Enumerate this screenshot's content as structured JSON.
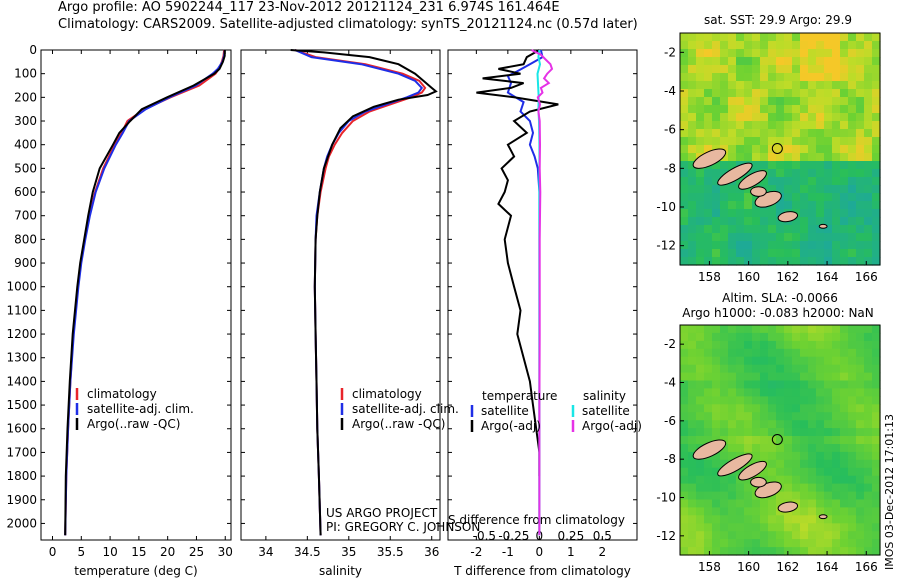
{
  "header": {
    "line1": "Argo profile: AO 5902244_117 23-Nov-2012 20121124_231 6.974S 161.464E",
    "line2": "Climatology: CARS2009. Satellite-adjusted climatology: synTS_20121124.nc (0.57d later)"
  },
  "stamp": "IMOS 03-Dec-2012 17:01:13",
  "colors": {
    "red": "#e8242a",
    "blue": "#1f2ee6",
    "black": "#000000",
    "cyan": "#19e6e6",
    "magenta": "#e632e6"
  },
  "depth_axis": {
    "ticks": [
      0,
      100,
      200,
      300,
      400,
      500,
      600,
      700,
      800,
      900,
      1000,
      1100,
      1200,
      1300,
      1400,
      1500,
      1600,
      1700,
      1800,
      1900,
      2000
    ],
    "range": [
      0,
      2070
    ]
  },
  "chart_data": [
    {
      "type": "line",
      "xlabel": "temperature (deg C)",
      "xticks": [
        0,
        5,
        10,
        15,
        20,
        25,
        30
      ],
      "xlim": [
        -2,
        31
      ],
      "legend": {
        "entries": [
          "climatology",
          "satellite-adj. clim.",
          "Argo(..raw -QC)"
        ]
      },
      "series": [
        {
          "name": "climatology",
          "color": "red",
          "depth": [
            0,
            25,
            50,
            80,
            100,
            150,
            200,
            250,
            300,
            350,
            400,
            500,
            600,
            700,
            800,
            900,
            1000,
            1200,
            1400,
            1600,
            1800,
            2050
          ],
          "values": [
            29.8,
            29.7,
            29.4,
            28.9,
            28.3,
            25.5,
            20.5,
            16.0,
            13.0,
            12.0,
            10.8,
            8.8,
            7.4,
            6.4,
            5.6,
            4.9,
            4.4,
            3.6,
            3.1,
            2.7,
            2.4,
            2.2
          ]
        },
        {
          "name": "satellite-adj. clim.",
          "color": "blue",
          "depth": [
            0,
            25,
            50,
            80,
            100,
            150,
            200,
            250,
            300,
            350,
            400,
            500,
            600,
            700,
            800,
            900,
            1000,
            1200,
            1400,
            1600,
            1800,
            2050
          ],
          "values": [
            29.9,
            29.8,
            29.5,
            28.7,
            27.8,
            24.9,
            20.3,
            16.2,
            13.3,
            12.2,
            11.0,
            9.0,
            7.5,
            6.5,
            5.7,
            5.0,
            4.5,
            3.7,
            3.1,
            2.7,
            2.4,
            2.2
          ]
        },
        {
          "name": "Argo(..raw -QC)",
          "color": "black",
          "depth": [
            0,
            25,
            50,
            80,
            100,
            150,
            200,
            250,
            300,
            350,
            400,
            500,
            600,
            700,
            800,
            900,
            1000,
            1200,
            1400,
            1600,
            1800,
            2050
          ],
          "values": [
            29.9,
            29.9,
            29.6,
            29.0,
            28.1,
            24.5,
            19.9,
            15.5,
            13.5,
            11.6,
            10.5,
            8.2,
            7.0,
            6.2,
            5.5,
            4.8,
            4.3,
            3.5,
            3.0,
            2.6,
            2.3,
            2.2
          ]
        }
      ]
    },
    {
      "type": "line",
      "xlabel": "salinity",
      "xticks": [
        34,
        34.5,
        35,
        35.5,
        36
      ],
      "xlim": [
        33.7,
        36.1
      ],
      "legend": {
        "entries": [
          "climatology",
          "satellite-adj. clim.",
          "Argo(..raw -QC)"
        ]
      },
      "annotation": [
        "US ARGO PROJECT",
        "PI: GREGORY C. JOHNSON"
      ],
      "series": [
        {
          "name": "climatology",
          "color": "red",
          "depth": [
            0,
            30,
            60,
            100,
            130,
            160,
            180,
            200,
            230,
            260,
            300,
            350,
            400,
            450,
            500,
            600,
            700,
            800,
            1000,
            1200,
            1400,
            1600,
            1800,
            2050
          ],
          "values": [
            34.35,
            34.6,
            35.2,
            35.65,
            35.85,
            35.92,
            35.88,
            35.75,
            35.5,
            35.25,
            35.05,
            34.92,
            34.83,
            34.76,
            34.72,
            34.66,
            34.62,
            34.6,
            34.59,
            34.6,
            34.61,
            34.62,
            34.64,
            34.66
          ]
        },
        {
          "name": "satellite-adj. clim.",
          "color": "blue",
          "depth": [
            0,
            30,
            60,
            100,
            130,
            160,
            180,
            200,
            230,
            260,
            300,
            350,
            400,
            450,
            500,
            600,
            700,
            800,
            1000,
            1200,
            1400,
            1600,
            1800,
            2050
          ],
          "values": [
            34.35,
            34.55,
            35.15,
            35.6,
            35.8,
            35.88,
            35.84,
            35.7,
            35.45,
            35.2,
            35.0,
            34.88,
            34.8,
            34.74,
            34.7,
            34.65,
            34.61,
            34.6,
            34.59,
            34.6,
            34.61,
            34.62,
            34.64,
            34.66
          ]
        },
        {
          "name": "Argo(..raw -QC)",
          "color": "black",
          "depth": [
            0,
            10,
            30,
            60,
            100,
            130,
            160,
            175,
            190,
            210,
            240,
            280,
            330,
            400,
            500,
            600,
            700,
            800,
            1000,
            1200,
            1400,
            1600,
            1800,
            2050
          ],
          "values": [
            34.3,
            34.7,
            35.25,
            35.6,
            35.8,
            35.9,
            36.0,
            36.05,
            35.95,
            35.6,
            35.3,
            35.05,
            34.9,
            34.8,
            34.7,
            34.65,
            34.62,
            34.6,
            34.59,
            34.6,
            34.61,
            34.62,
            34.64,
            34.66
          ]
        }
      ]
    },
    {
      "type": "line",
      "xlabel": "T difference from climatology",
      "xlabel2": "S difference from climatology",
      "xticks": [
        -2,
        -1,
        0,
        1,
        2
      ],
      "xticks2": [
        -0.5,
        -0.25,
        0,
        0.25,
        0.5
      ],
      "xlim": [
        -2.9,
        3.1
      ],
      "legend": {
        "left_title": "temperature",
        "right_title": "salinity",
        "left": [
          "satellite",
          "Argo(-adj)"
        ],
        "right": [
          "satellite",
          "Argo(-adj)"
        ]
      },
      "series": [
        {
          "name": "temperature satellite",
          "color": "blue",
          "depth": [
            0,
            30,
            60,
            90,
            110,
            140,
            180,
            220,
            260,
            300,
            350,
            400,
            450,
            500,
            600,
            800,
            1000,
            1400,
            2050
          ],
          "values": [
            0.05,
            0.1,
            -0.3,
            -0.7,
            -1.0,
            -0.9,
            -1.0,
            -0.5,
            -0.6,
            -0.3,
            -0.2,
            -0.3,
            -0.15,
            -0.05,
            0,
            0,
            0,
            0,
            0
          ]
        },
        {
          "name": "temperature Argo(-adj)",
          "color": "black",
          "depth": [
            0,
            30,
            60,
            80,
            100,
            120,
            140,
            160,
            180,
            200,
            230,
            260,
            300,
            350,
            400,
            450,
            500,
            550,
            600,
            650,
            700,
            800,
            900,
            1000,
            1100,
            1200,
            1300,
            1400,
            1500,
            1600,
            1700,
            1800
          ],
          "values": [
            0,
            -0.4,
            -0.5,
            -1.3,
            -0.6,
            -1.8,
            -0.5,
            -0.9,
            -2.0,
            -0.8,
            0.6,
            -0.3,
            -0.8,
            -0.4,
            -1.0,
            -0.8,
            -1.2,
            -1.0,
            -1.1,
            -1.3,
            -0.9,
            -1.1,
            -1.0,
            -0.8,
            -0.6,
            -0.7,
            -0.5,
            -0.3,
            -0.2,
            -0.1,
            0,
            0
          ]
        },
        {
          "name": "salinity satellite",
          "color": "cyan",
          "depth": [
            0,
            30,
            60,
            100,
            150,
            200,
            250,
            300,
            400,
            500,
            700,
            1000,
            1500,
            2050
          ],
          "values": [
            0,
            -0.03,
            0.02,
            -0.06,
            -0.04,
            -0.02,
            -0.03,
            -0.01,
            0,
            0,
            0,
            0,
            0,
            0
          ]
        },
        {
          "name": "salinity Argo(-adj)",
          "color": "magenta",
          "depth": [
            0,
            20,
            40,
            60,
            80,
            100,
            120,
            140,
            160,
            180,
            200,
            230,
            260,
            300,
            400,
            500,
            600,
            700,
            800,
            1000,
            1200,
            1500,
            1800,
            2050
          ],
          "values": [
            -0.25,
            0.05,
            0.2,
            0.35,
            0.4,
            0.25,
            0.15,
            0.3,
            0.05,
            0.1,
            -0.05,
            0.02,
            -0.03,
            0.01,
            0.02,
            0.01,
            0.03,
            0.02,
            0.01,
            0.01,
            0.01,
            0,
            0,
            0
          ]
        }
      ]
    },
    {
      "type": "heatmap",
      "title": "sat. SST: 29.9 Argo: 29.9",
      "xticks": [
        158,
        160,
        162,
        164,
        166
      ],
      "yticks": [
        -2,
        -4,
        -6,
        -8,
        -10,
        -12
      ],
      "xlim": [
        156.5,
        166.7
      ],
      "ylim": [
        -13,
        -1
      ],
      "marker": {
        "lon": 161.464,
        "lat": -6.974
      }
    },
    {
      "type": "heatmap",
      "title": "Altim. SLA: -0.0066",
      "subtitle": "Argo h1000: -0.083 h2000: NaN",
      "xticks": [
        158,
        160,
        162,
        164,
        166
      ],
      "yticks": [
        -2,
        -4,
        -6,
        -8,
        -10,
        -12
      ],
      "xlim": [
        156.5,
        166.7
      ],
      "ylim": [
        -13,
        -1
      ],
      "marker": {
        "lon": 161.464,
        "lat": -6.974
      }
    }
  ]
}
